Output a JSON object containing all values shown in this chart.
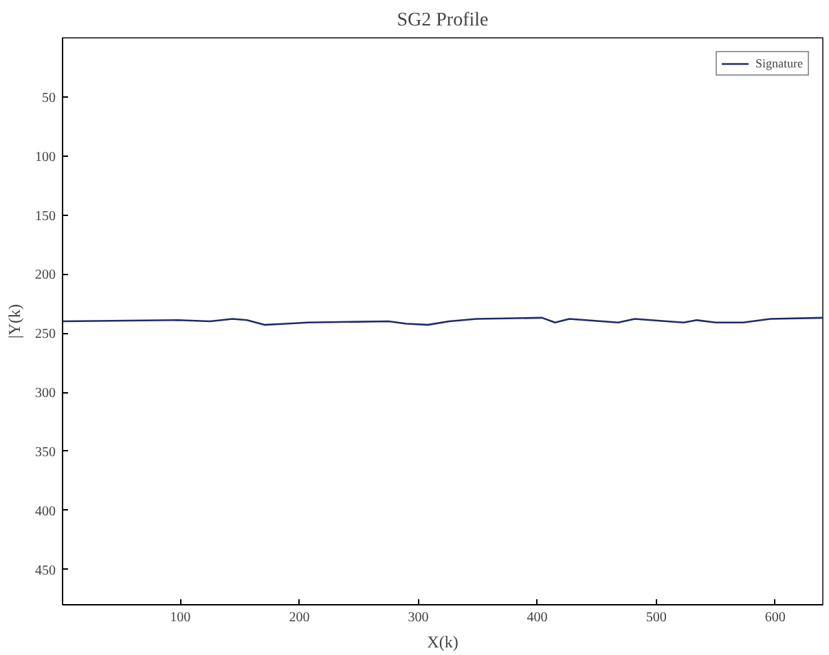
{
  "chart_data": {
    "type": "line",
    "title": "SG2 Profile",
    "xlabel": "X(k)",
    "ylabel": "|Y(k)",
    "xlim": [
      1,
      640
    ],
    "ylim": [
      480,
      0
    ],
    "xticks": [
      100,
      200,
      300,
      400,
      500,
      600
    ],
    "yticks": [
      50,
      100,
      150,
      200,
      250,
      300,
      350,
      400,
      450
    ],
    "grid": false,
    "legend": "top right",
    "marker": "none",
    "line_style": "solid",
    "series": [
      {
        "name": "Signature",
        "color": "#1f2a6b",
        "x": [
          1,
          98,
          125,
          144,
          156,
          171,
          189,
          207,
          275,
          290,
          308,
          326,
          349,
          404,
          415,
          427,
          468,
          482,
          509,
          523,
          534,
          550,
          573,
          596,
          640
        ],
        "values": [
          240,
          239,
          240,
          238,
          239,
          243,
          242,
          241,
          240,
          242,
          243,
          240,
          238,
          237,
          241,
          238,
          241,
          238,
          240,
          241,
          239,
          241,
          241,
          238,
          237
        ]
      }
    ]
  }
}
